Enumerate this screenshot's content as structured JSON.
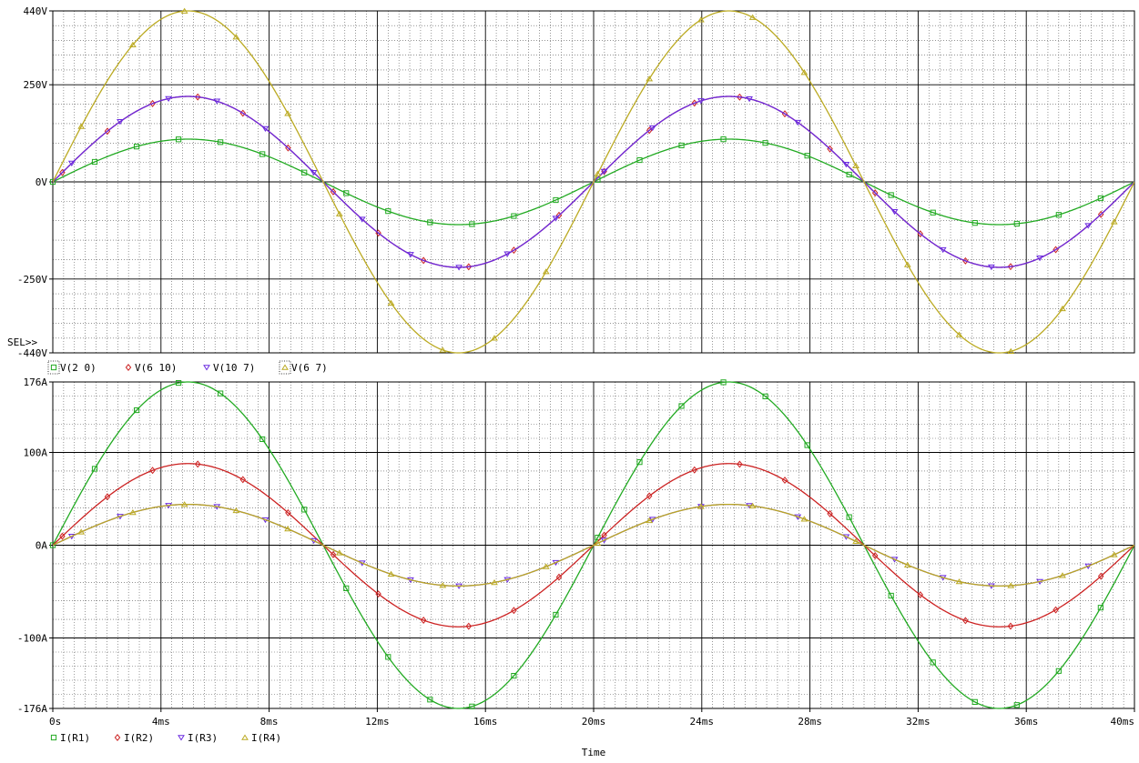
{
  "chart_data": [
    {
      "type": "line",
      "panel": "top",
      "xlabel": "",
      "ylabel": "",
      "xlim": [
        0,
        40
      ],
      "ylim": [
        -440,
        440
      ],
      "x_unit": "ms",
      "y_tick_labels": [
        {
          "v": 440,
          "t": "440V"
        },
        {
          "v": 250,
          "t": "250V"
        },
        {
          "v": 0,
          "t": "0V"
        },
        {
          "v": -250,
          "t": "-250V"
        },
        {
          "v": -440,
          "t": "-440V"
        }
      ],
      "sel_marker": "SEL>>",
      "grid": true,
      "legend_placement": "bottom-left",
      "series": [
        {
          "name": "V(2 0)",
          "amplitude": 110,
          "frequency_hz": 50,
          "phase_deg": 0,
          "color": "#22aa22",
          "marker": "square"
        },
        {
          "name": "V(6 10)",
          "amplitude": 220,
          "frequency_hz": 50,
          "phase_deg": 0,
          "color": "#cc2222",
          "marker": "diamond"
        },
        {
          "name": "V(10 7)",
          "amplitude": 220,
          "frequency_hz": 50,
          "phase_deg": 0,
          "color": "#6a2ae0",
          "marker": "triangle-down"
        },
        {
          "name": "V(6 7)",
          "amplitude": 440,
          "frequency_hz": 50,
          "phase_deg": 0,
          "color": "#bbaa22",
          "marker": "triangle-up"
        }
      ]
    },
    {
      "type": "line",
      "panel": "bottom",
      "xlabel": "Time",
      "ylabel": "",
      "xlim": [
        0,
        40
      ],
      "ylim": [
        -176,
        176
      ],
      "x_unit": "ms",
      "x_ticks": [
        0,
        4,
        8,
        12,
        16,
        20,
        24,
        28,
        32,
        36,
        40
      ],
      "x_tick_labels": [
        "0s",
        "4ms",
        "8ms",
        "12ms",
        "16ms",
        "20ms",
        "24ms",
        "28ms",
        "32ms",
        "36ms",
        "40ms"
      ],
      "y_tick_labels": [
        {
          "v": 176,
          "t": "176A"
        },
        {
          "v": 100,
          "t": "100A"
        },
        {
          "v": 0,
          "t": "0A"
        },
        {
          "v": -100,
          "t": "-100A"
        },
        {
          "v": -176,
          "t": "-176A"
        }
      ],
      "grid": true,
      "legend_placement": "bottom-left",
      "series": [
        {
          "name": "I(R1)",
          "amplitude": 176,
          "frequency_hz": 50,
          "phase_deg": 0,
          "color": "#22aa22",
          "marker": "square"
        },
        {
          "name": "I(R2)",
          "amplitude": 88,
          "frequency_hz": 50,
          "phase_deg": 0,
          "color": "#cc2222",
          "marker": "diamond"
        },
        {
          "name": "I(R3)",
          "amplitude": 44,
          "frequency_hz": 50,
          "phase_deg": 0,
          "color": "#6a2ae0",
          "marker": "triangle-down"
        },
        {
          "name": "I(R4)",
          "amplitude": 44,
          "frequency_hz": 50,
          "phase_deg": 0,
          "color": "#bbaa22",
          "marker": "triangle-up"
        }
      ]
    }
  ]
}
